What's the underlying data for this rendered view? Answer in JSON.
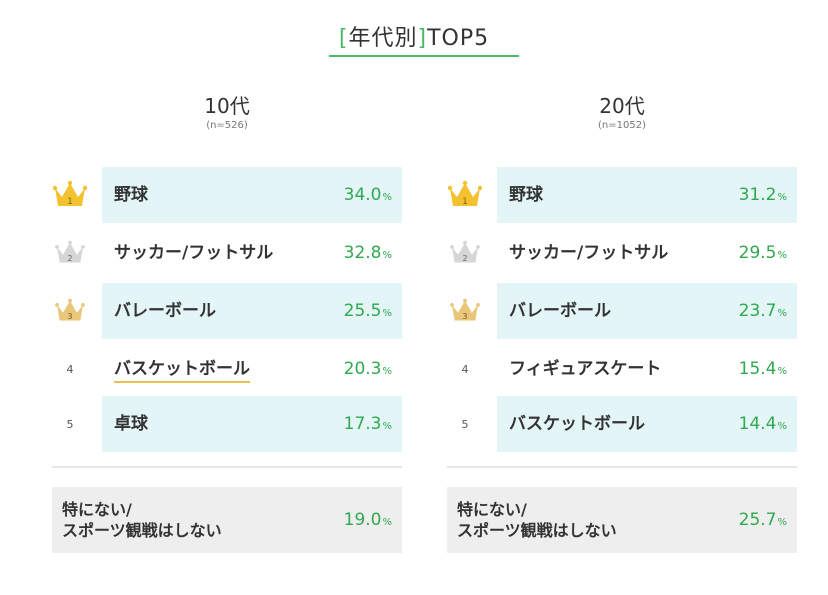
{
  "title": {
    "bracket_open": "[",
    "bracket_text": "年代別",
    "bracket_close": "]",
    "suffix": "TOP5"
  },
  "colors": {
    "accent_green": "#2fa94e",
    "title_green": "#4fb96a",
    "row_shade": "#e3f5f6",
    "gold": "#f2c230",
    "silver": "#d0d0d0",
    "bronze": "#e8c77a",
    "none_bg": "#eeeeee",
    "underline": "#e9c24a"
  },
  "icons": [
    "crown-gold-icon",
    "crown-silver-icon",
    "crown-bronze-icon"
  ],
  "chart_data": [
    {
      "type": "table",
      "title": "10代",
      "sample": "(n=526)",
      "unit": "%",
      "ranks": [
        "1",
        "2",
        "3",
        "4",
        "5"
      ],
      "categories": [
        "野球",
        "サッカー/フットサル",
        "バレーボール",
        "バスケットボール",
        "卓球"
      ],
      "values": [
        34.0,
        32.8,
        25.5,
        20.3,
        17.3
      ],
      "value_labels": [
        "34.0",
        "32.8",
        "25.5",
        "20.3",
        "17.3"
      ],
      "none": {
        "label_line1": "特にない/",
        "label_line2": "スポーツ観戦はしない",
        "value": 19.0,
        "value_label": "19.0"
      }
    },
    {
      "type": "table",
      "title": "20代",
      "sample": "(n=1052)",
      "unit": "%",
      "ranks": [
        "1",
        "2",
        "3",
        "4",
        "5"
      ],
      "categories": [
        "野球",
        "サッカー/フットサル",
        "バレーボール",
        "フィギュアスケート",
        "バスケットボール"
      ],
      "values": [
        31.2,
        29.5,
        23.7,
        15.4,
        14.4
      ],
      "value_labels": [
        "31.2",
        "29.5",
        "23.7",
        "15.4",
        "14.4"
      ],
      "none": {
        "label_line1": "特にない/",
        "label_line2": "スポーツ観戦はしない",
        "value": 25.7,
        "value_label": "25.7"
      }
    }
  ]
}
